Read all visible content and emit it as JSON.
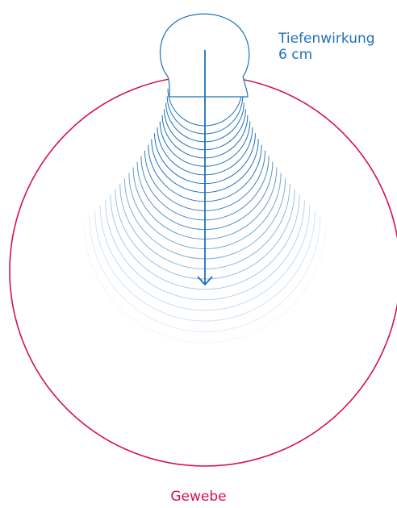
{
  "labels": {
    "depth_title": "Tiefenwirkung",
    "depth_value": "6 cm",
    "tissue": "Gewebe"
  },
  "colors": {
    "wave": "#1f71b8",
    "tissue": "#d3124f",
    "background": "#ffffff"
  }
}
